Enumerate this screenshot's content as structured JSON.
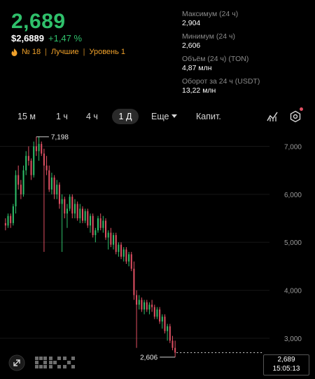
{
  "header": {
    "price": "2,689",
    "usd_price": "$2,6889",
    "change": "+1,47 %",
    "rank": "№ 18",
    "category": "Лучшие",
    "level": "Уровень 1"
  },
  "stats": [
    {
      "label": "Максимум (24 ч)",
      "value": "2,904"
    },
    {
      "label": "Минимум (24 ч)",
      "value": "2,606"
    },
    {
      "label": "Объём (24 ч) (TON)",
      "value": "4,87 млн"
    },
    {
      "label": "Оборот за 24 ч (USDT)",
      "value": "13,22 млн"
    }
  ],
  "timeframes": {
    "items": [
      "15 м",
      "1 ч",
      "4 ч",
      "1 Д"
    ],
    "active": "1 Д",
    "more": "Еще",
    "capit": "Капит."
  },
  "chart_data": {
    "type": "candlestick",
    "y_ticks": [
      "7,000",
      "6,000",
      "5,000",
      "4,000",
      "3,000"
    ],
    "ylim": [
      2400,
      7300
    ],
    "max_annotation": "7,198",
    "min_annotation": "2,606",
    "last_price": "2,689",
    "countdown": "15:05:13",
    "colors": {
      "up": "#2fc06b",
      "down": "#e05063"
    },
    "candles": [
      [
        5400,
        5500,
        5250,
        5350
      ],
      [
        5350,
        5600,
        5300,
        5550
      ],
      [
        5550,
        5600,
        5300,
        5400
      ],
      [
        5400,
        5800,
        5350,
        5750
      ],
      [
        5750,
        6500,
        5600,
        6400
      ],
      [
        6400,
        6600,
        6100,
        6200
      ],
      [
        6200,
        6300,
        5900,
        6000
      ],
      [
        6000,
        6600,
        5950,
        6500
      ],
      [
        6500,
        6900,
        6400,
        6800
      ],
      [
        6800,
        7000,
        6600,
        6700
      ],
      [
        6700,
        6750,
        6300,
        6400
      ],
      [
        6400,
        7100,
        6350,
        7000
      ],
      [
        7000,
        7200,
        6800,
        6900
      ],
      [
        6900,
        7198,
        6700,
        7050
      ],
      [
        7050,
        7100,
        6800,
        6850
      ],
      [
        6850,
        6950,
        4800,
        6600
      ],
      [
        6600,
        6800,
        6400,
        6500
      ],
      [
        6500,
        6600,
        6050,
        6100
      ],
      [
        6100,
        6450,
        6000,
        6350
      ],
      [
        6350,
        6400,
        5900,
        6000
      ],
      [
        6000,
        6300,
        5900,
        6200
      ],
      [
        6200,
        6250,
        5700,
        5800
      ],
      [
        5800,
        6000,
        4800,
        5900
      ],
      [
        5900,
        5950,
        5500,
        5600
      ],
      [
        5600,
        5800,
        5300,
        5700
      ],
      [
        5700,
        6000,
        5650,
        5950
      ],
      [
        5950,
        6000,
        5500,
        5600
      ],
      [
        5600,
        5900,
        5500,
        5800
      ],
      [
        5800,
        5850,
        5450,
        5500
      ],
      [
        5500,
        5800,
        5400,
        5700
      ],
      [
        5700,
        5750,
        5400,
        5450
      ],
      [
        5450,
        5700,
        5400,
        5650
      ],
      [
        5650,
        5700,
        5300,
        5350
      ],
      [
        5350,
        5600,
        5200,
        5550
      ],
      [
        5550,
        5600,
        5100,
        5150
      ],
      [
        5150,
        5300,
        5000,
        5250
      ],
      [
        5250,
        5550,
        5200,
        5500
      ],
      [
        5500,
        5600,
        5250,
        5300
      ],
      [
        5300,
        5550,
        5200,
        5450
      ],
      [
        5450,
        5500,
        5050,
        5100
      ],
      [
        5100,
        5250,
        4850,
        5200
      ],
      [
        5200,
        5300,
        4900,
        4950
      ],
      [
        4950,
        5200,
        4850,
        5150
      ],
      [
        5150,
        5200,
        4750,
        4800
      ],
      [
        4800,
        5000,
        4700,
        4950
      ],
      [
        4950,
        5000,
        4650,
        4700
      ],
      [
        4700,
        4900,
        4600,
        4850
      ],
      [
        4850,
        4900,
        4550,
        4600
      ],
      [
        4600,
        4800,
        4500,
        4750
      ],
      [
        4750,
        4800,
        4400,
        4450
      ],
      [
        4450,
        4600,
        3800,
        3900
      ],
      [
        3900,
        4000,
        2800,
        3700
      ],
      [
        3700,
        3900,
        3600,
        3800
      ],
      [
        3800,
        3850,
        3550,
        3600
      ],
      [
        3600,
        3800,
        3500,
        3750
      ],
      [
        3750,
        3800,
        3550,
        3600
      ],
      [
        3600,
        3750,
        3500,
        3700
      ],
      [
        3700,
        3800,
        3550,
        3650
      ],
      [
        3650,
        3700,
        3400,
        3450
      ],
      [
        3450,
        3650,
        3400,
        3600
      ],
      [
        3600,
        3650,
        3300,
        3350
      ],
      [
        3350,
        3500,
        3200,
        3450
      ],
      [
        3450,
        3500,
        3100,
        3150
      ],
      [
        3150,
        3300,
        2950,
        3250
      ],
      [
        3250,
        3300,
        2900,
        2950
      ],
      [
        2950,
        3050,
        2750,
        2800
      ],
      [
        2800,
        2950,
        2606,
        2700
      ]
    ]
  }
}
